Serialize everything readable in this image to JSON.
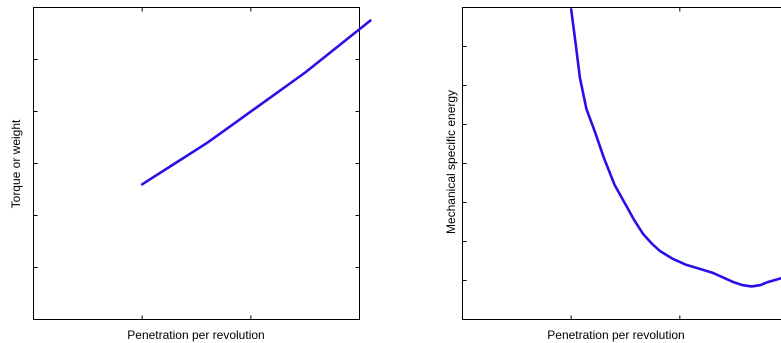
{
  "chart_data": [
    {
      "type": "line",
      "title": "",
      "xlabel": "Penetration per revolution",
      "ylabel": "Torque or weight",
      "xlim": [
        0,
        3
      ],
      "ylim": [
        0,
        6
      ],
      "xticks": [
        1,
        2,
        3
      ],
      "yticks": [
        1,
        2,
        3,
        4,
        5,
        6
      ],
      "tick_labels_shown": false,
      "grid": false,
      "series": [
        {
          "color": "#2a10e8",
          "x": [
            1.0,
            1.3,
            1.6,
            1.9,
            2.2,
            2.5,
            2.8,
            3.1
          ],
          "y": [
            2.6,
            3.0,
            3.4,
            3.85,
            4.3,
            4.75,
            5.25,
            5.75
          ]
        }
      ]
    },
    {
      "type": "line",
      "title": "",
      "xlabel": "Penetration per revolution",
      "ylabel": "Mechanical specific energy",
      "xlim": [
        0,
        3
      ],
      "ylim": [
        0,
        8
      ],
      "xticks": [
        1,
        2,
        3
      ],
      "yticks": [
        1,
        2,
        3,
        4,
        5,
        6,
        7,
        8
      ],
      "tick_labels_shown": false,
      "grid": false,
      "series": [
        {
          "color": "#2a10e8",
          "x": [
            1.0,
            1.04,
            1.08,
            1.14,
            1.22,
            1.3,
            1.4,
            1.5,
            1.58,
            1.66,
            1.74,
            1.82,
            1.94,
            2.06,
            2.18,
            2.3,
            2.42,
            2.5,
            2.58,
            2.66,
            2.74,
            2.8,
            2.86,
            2.92,
            2.98,
            3.04,
            3.1
          ],
          "y": [
            7.95,
            7.1,
            6.2,
            5.4,
            4.8,
            4.15,
            3.45,
            2.95,
            2.55,
            2.2,
            1.95,
            1.75,
            1.55,
            1.4,
            1.3,
            1.2,
            1.05,
            0.95,
            0.88,
            0.85,
            0.88,
            0.95,
            1.0,
            1.05,
            1.1,
            1.13,
            1.15
          ]
        }
      ]
    }
  ]
}
